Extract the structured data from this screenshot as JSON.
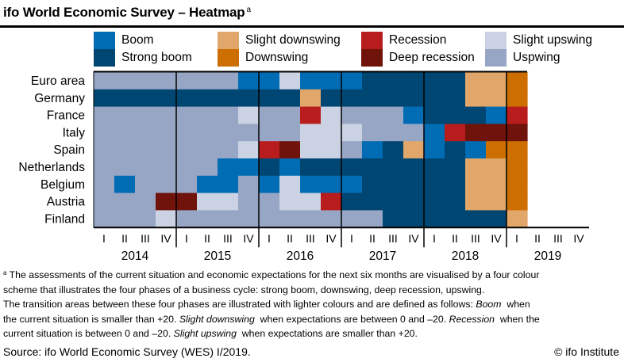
{
  "title": "ifo World Economic Survey – Heatmap",
  "title_superscript": "a",
  "legend": [
    {
      "code": "B",
      "label": "Boom",
      "color": "#006cb4"
    },
    {
      "code": "SB",
      "label": "Strong boom",
      "color": "#004672"
    },
    {
      "code": "SD",
      "label": "Slight downswing",
      "color": "#e0a66a"
    },
    {
      "code": "D",
      "label": "Downswing",
      "color": "#cc6e00"
    },
    {
      "code": "R",
      "label": "Recession",
      "color": "#b81c1c"
    },
    {
      "code": "DR",
      "label": "Deep recession",
      "color": "#6f130b"
    },
    {
      "code": "SU",
      "label": "Slight upswing",
      "color": "#cbd2e4"
    },
    {
      "code": "U",
      "label": "Uspwing",
      "color": "#97a6c4"
    }
  ],
  "chart_data": {
    "type": "heatmap",
    "title": "ifo World Economic Survey – Heatmap",
    "xlabel": "",
    "ylabel": "",
    "years": [
      "2014",
      "2015",
      "2016",
      "2017",
      "2018",
      "2019"
    ],
    "quarter_labels": [
      "I",
      "II",
      "III",
      "IV"
    ],
    "x": [
      "2014 I",
      "2014 II",
      "2014 III",
      "2014 IV",
      "2015 I",
      "2015 II",
      "2015 III",
      "2015 IV",
      "2016 I",
      "2016 II",
      "2016 III",
      "2016 IV",
      "2017 I",
      "2017 II",
      "2017 III",
      "2017 IV",
      "2018 I",
      "2018 II",
      "2018 III",
      "2018 IV",
      "2019 I"
    ],
    "total_quarters_on_axis": 24,
    "categories": [
      "Euro area",
      "Germany",
      "France",
      "Italy",
      "Spain",
      "Netherlands",
      "Belgium",
      "Austria",
      "Finland"
    ],
    "series": [
      {
        "name": "Euro area",
        "values": [
          "U",
          "U",
          "U",
          "U",
          "U",
          "U",
          "U",
          "B",
          "B",
          "SU",
          "B",
          "B",
          "B",
          "SB",
          "SB",
          "SB",
          "SB",
          "SB",
          "SD",
          "SD",
          "D"
        ]
      },
      {
        "name": "Germany",
        "values": [
          "SB",
          "SB",
          "SB",
          "SB",
          "SB",
          "SB",
          "SB",
          "SB",
          "SB",
          "SB",
          "SD",
          "SB",
          "SB",
          "SB",
          "SB",
          "SB",
          "SB",
          "SB",
          "SD",
          "SD",
          "D"
        ]
      },
      {
        "name": "France",
        "values": [
          "U",
          "U",
          "U",
          "U",
          "U",
          "U",
          "U",
          "SU",
          "U",
          "U",
          "R",
          "SU",
          "U",
          "U",
          "U",
          "B",
          "SB",
          "SB",
          "SB",
          "B",
          "R"
        ]
      },
      {
        "name": "Italy",
        "values": [
          "U",
          "U",
          "U",
          "U",
          "U",
          "U",
          "U",
          "U",
          "U",
          "U",
          "SU",
          "SU",
          "SU",
          "U",
          "U",
          "U",
          "B",
          "R",
          "DR",
          "DR",
          "DR"
        ]
      },
      {
        "name": "Spain",
        "values": [
          "U",
          "U",
          "U",
          "U",
          "U",
          "U",
          "U",
          "SU",
          "R",
          "DR",
          "SU",
          "SU",
          "U",
          "B",
          "SB",
          "SD",
          "B",
          "SB",
          "B",
          "D",
          "D"
        ]
      },
      {
        "name": "Netherlands",
        "values": [
          "U",
          "U",
          "U",
          "U",
          "U",
          "U",
          "B",
          "B",
          "SB",
          "B",
          "SB",
          "SB",
          "SB",
          "SB",
          "SB",
          "SB",
          "SB",
          "SB",
          "SD",
          "SD",
          "D"
        ]
      },
      {
        "name": "Belgium",
        "values": [
          "U",
          "B",
          "U",
          "U",
          "U",
          "B",
          "B",
          "U",
          "B",
          "SU",
          "B",
          "B",
          "B",
          "SB",
          "SB",
          "SB",
          "SB",
          "SB",
          "SD",
          "SD",
          "D"
        ]
      },
      {
        "name": "Austria",
        "values": [
          "U",
          "U",
          "U",
          "DR",
          "DR",
          "SU",
          "SU",
          "U",
          "U",
          "SU",
          "SU",
          "R",
          "SB",
          "SB",
          "SB",
          "SB",
          "SB",
          "SB",
          "SD",
          "SD",
          "D"
        ]
      },
      {
        "name": "Finland",
        "values": [
          "U",
          "U",
          "U",
          "SU",
          "U",
          "U",
          "U",
          "U",
          "U",
          "U",
          "U",
          "U",
          "U",
          "U",
          "SB",
          "SB",
          "SB",
          "SB",
          "SB",
          "SB",
          "SD"
        ]
      }
    ]
  },
  "footnote": {
    "marker": "a",
    "line1": " The assessments of the current situation and economic expectations for the next six months are visualised by a four colour",
    "line2": "scheme that illustrates the four phases of a business cycle: strong boom, downswing, deep recession, upswing.",
    "line3_a": "The transition areas between these four phases are illustrated with lighter colours and are defined as follows: ",
    "line3_em": "Boom",
    "line3_b": "  when",
    "line4_a": "the current situation is smaller than +20. ",
    "line4_em1": "Slight downswing",
    "line4_b": "  when expectations are between 0 and –20. ",
    "line4_em2": "Recession",
    "line4_c": "  when the",
    "line5_a": "current situation is between 0 and –20. ",
    "line5_em": "Slight upswing",
    "line5_b": "  when expectations are smaller than +20."
  },
  "source": "Source: ifo World Economic Survey (WES) I/2019.",
  "copyright": "© ifo Institute"
}
